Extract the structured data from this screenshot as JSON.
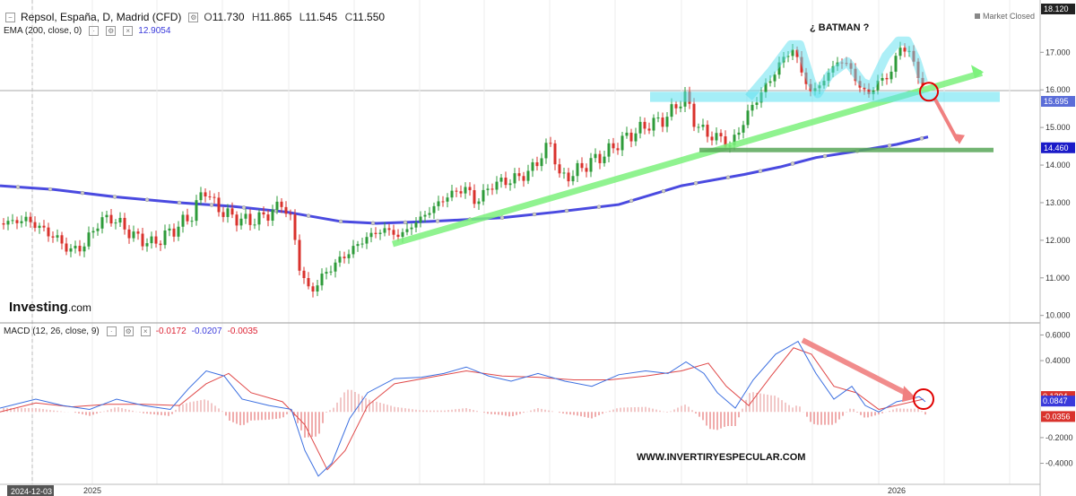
{
  "header": {
    "symbol": "Repsol, España, D, Madrid (CFD)",
    "o_label": "O",
    "o": "11.730",
    "h_label": "H",
    "h": "11.865",
    "l_label": "L",
    "l": "11.545",
    "c_label": "C",
    "c": "11.550",
    "ema_label": "EMA (200, close, 0)",
    "ema_value": "12.9054",
    "macd_label": "MACD (12, 26, close, 9)",
    "macd_v1": "-0.0172",
    "macd_v2": "-0.0207",
    "macd_v3": "-0.0035",
    "market_closed": "Market Closed"
  },
  "logo": {
    "brand": "Investing",
    "suffix": ".com"
  },
  "colors": {
    "up": "#2e9b3a",
    "down": "#d9322c",
    "ema": "#4a4ae0",
    "macd": "#3a6ee0",
    "signal": "#e04848",
    "cyan": "#5be0f0",
    "green": "#7df27d",
    "support": "#5aa85a",
    "red_arrow": "#f08080",
    "circle": "#e00000"
  },
  "chart_data": [
    {
      "type": "candlestick",
      "title": "Repsol, España, D, Madrid (CFD)",
      "annotations": [
        "¿ BATMAN ?",
        "WWW.INVERTIRYESPECULAR.COM"
      ],
      "x_tick_labels": [
        "2024-12-03",
        "2025",
        "2026"
      ],
      "ylim": [
        9.85,
        18.2
      ],
      "y_ticks": [
        10.0,
        11.0,
        12.0,
        13.0,
        14.0,
        15.0,
        16.0,
        17.0
      ],
      "y_tick_labels": [
        "10.000",
        "11.000",
        "12.000",
        "13.000",
        "14.000",
        "15.000",
        "16.000",
        "17.000"
      ],
      "price_labels": [
        {
          "value": 18.12,
          "text": "18.120",
          "color": "#222222"
        },
        {
          "value": 15.695,
          "text": "15.695",
          "color": "#5b6dd8"
        },
        {
          "value": 14.46,
          "text": "14.460",
          "color": "#1a1ac8"
        }
      ],
      "price_path": [
        [
          0,
          12.45
        ],
        [
          30,
          12.55
        ],
        [
          60,
          12.1
        ],
        [
          80,
          11.7
        ],
        [
          95,
          11.9
        ],
        [
          110,
          12.5
        ],
        [
          125,
          12.6
        ],
        [
          150,
          12.1
        ],
        [
          170,
          11.9
        ],
        [
          195,
          12.3
        ],
        [
          215,
          12.7
        ],
        [
          228,
          13.4
        ],
        [
          240,
          12.9
        ],
        [
          260,
          12.6
        ],
        [
          280,
          12.5
        ],
        [
          300,
          12.7
        ],
        [
          315,
          13.0
        ],
        [
          325,
          12.5
        ],
        [
          335,
          11.2
        ],
        [
          345,
          10.6
        ],
        [
          355,
          10.9
        ],
        [
          370,
          11.3
        ],
        [
          390,
          11.7
        ],
        [
          410,
          12.1
        ],
        [
          430,
          12.3
        ],
        [
          445,
          12.1
        ],
        [
          460,
          12.4
        ],
        [
          480,
          12.8
        ],
        [
          500,
          13.2
        ],
        [
          520,
          13.4
        ],
        [
          530,
          13.0
        ],
        [
          550,
          13.5
        ],
        [
          570,
          13.6
        ],
        [
          590,
          13.8
        ],
        [
          605,
          14.3
        ],
        [
          615,
          14.6
        ],
        [
          625,
          13.6
        ],
        [
          640,
          13.8
        ],
        [
          660,
          14.1
        ],
        [
          675,
          14.3
        ],
        [
          690,
          14.6
        ],
        [
          710,
          14.9
        ],
        [
          725,
          15.1
        ],
        [
          740,
          15.2
        ],
        [
          755,
          15.6
        ],
        [
          765,
          15.85
        ],
        [
          775,
          15.1
        ],
        [
          790,
          14.8
        ],
        [
          805,
          14.7
        ],
        [
          815,
          14.5
        ],
        [
          830,
          15.2
        ],
        [
          845,
          15.8
        ],
        [
          860,
          16.3
        ],
        [
          872,
          16.8
        ],
        [
          885,
          17.1
        ],
        [
          895,
          16.4
        ],
        [
          905,
          15.9
        ],
        [
          920,
          16.3
        ],
        [
          935,
          16.8
        ],
        [
          948,
          16.6
        ],
        [
          960,
          16.0
        ],
        [
          968,
          15.9
        ],
        [
          980,
          16.2
        ],
        [
          995,
          16.5
        ],
        [
          1005,
          17.25
        ],
        [
          1015,
          16.9
        ],
        [
          1025,
          16.4
        ],
        [
          1032,
          15.9
        ]
      ],
      "series": [
        {
          "name": "EMA (200, close, 0)",
          "points": [
            [
              0,
              13.45
            ],
            [
              60,
              13.35
            ],
            [
              130,
              13.15
            ],
            [
              200,
              13.0
            ],
            [
              260,
              12.9
            ],
            [
              320,
              12.75
            ],
            [
              380,
              12.5
            ],
            [
              420,
              12.45
            ],
            [
              480,
              12.5
            ],
            [
              560,
              12.6
            ],
            [
              620,
              12.75
            ],
            [
              690,
              12.95
            ],
            [
              760,
              13.45
            ],
            [
              830,
              13.75
            ],
            [
              870,
              13.95
            ],
            [
              910,
              14.2
            ],
            [
              950,
              14.35
            ],
            [
              1000,
              14.55
            ],
            [
              1035,
              14.75
            ]
          ]
        }
      ],
      "drawings": [
        {
          "kind": "trendline",
          "color": "green",
          "from": [
            438,
            11.9
          ],
          "to": [
            1095,
            16.45
          ]
        },
        {
          "kind": "trendline",
          "color": "green",
          "from": [
            780,
            14.4
          ],
          "to": [
            1108,
            14.4
          ]
        },
        {
          "kind": "band",
          "color": "cyan",
          "from": [
            725,
            15.95
          ],
          "to": [
            1115,
            15.68
          ]
        },
        {
          "kind": "batman-outline",
          "color": "cyan",
          "points": [
            [
              835,
              15.8
            ],
            [
              860,
              16.5
            ],
            [
              882,
              17.2
            ],
            [
              892,
              17.2
            ],
            [
              905,
              16.2
            ],
            [
              912,
              15.9
            ],
            [
              925,
              16.4
            ],
            [
              945,
              16.75
            ],
            [
              962,
              16.2
            ],
            [
              972,
              16.1
            ],
            [
              988,
              16.9
            ],
            [
              1002,
              17.3
            ],
            [
              1012,
              17.3
            ],
            [
              1022,
              16.8
            ],
            [
              1030,
              16.2
            ]
          ]
        },
        {
          "kind": "arrow",
          "color": "red",
          "from": [
            1043,
            15.75
          ],
          "to": [
            1068,
            14.65
          ]
        },
        {
          "kind": "circle",
          "color": "red",
          "center": [
            1036,
            15.95
          ]
        }
      ]
    },
    {
      "type": "macd",
      "title": "MACD (12, 26, close, 9)",
      "ylim": [
        -0.55,
        0.68
      ],
      "y_ticks": [
        0.6,
        0.4,
        -0.2,
        -0.4
      ],
      "y_tick_labels": [
        "0.6000",
        "0.4000",
        "-0.2000",
        "-0.4000"
      ],
      "price_labels": [
        {
          "value": 0.1204,
          "text": "0.1204",
          "color": "#d9322c"
        },
        {
          "value": 0.0847,
          "text": "0.0847",
          "color": "#3a3adb"
        },
        {
          "value": -0.0356,
          "text": "-0.0356",
          "color": "#d9322c"
        }
      ],
      "series": [
        {
          "name": "MACD",
          "points": [
            [
              0,
              0.03
            ],
            [
              40,
              0.1
            ],
            [
              70,
              0.05
            ],
            [
              100,
              0.02
            ],
            [
              130,
              0.1
            ],
            [
              160,
              0.05
            ],
            [
              190,
              0.02
            ],
            [
              210,
              0.18
            ],
            [
              230,
              0.32
            ],
            [
              250,
              0.28
            ],
            [
              270,
              0.1
            ],
            [
              300,
              0.05
            ],
            [
              325,
              0.02
            ],
            [
              340,
              -0.3
            ],
            [
              355,
              -0.5
            ],
            [
              370,
              -0.4
            ],
            [
              390,
              -0.05
            ],
            [
              410,
              0.15
            ],
            [
              440,
              0.26
            ],
            [
              470,
              0.27
            ],
            [
              495,
              0.3
            ],
            [
              520,
              0.35
            ],
            [
              545,
              0.28
            ],
            [
              570,
              0.24
            ],
            [
              600,
              0.3
            ],
            [
              630,
              0.24
            ],
            [
              660,
              0.2
            ],
            [
              690,
              0.29
            ],
            [
              720,
              0.32
            ],
            [
              745,
              0.3
            ],
            [
              765,
              0.39
            ],
            [
              785,
              0.3
            ],
            [
              800,
              0.15
            ],
            [
              820,
              0.03
            ],
            [
              840,
              0.25
            ],
            [
              865,
              0.45
            ],
            [
              890,
              0.55
            ],
            [
              910,
              0.3
            ],
            [
              930,
              0.1
            ],
            [
              950,
              0.2
            ],
            [
              965,
              0.05
            ],
            [
              980,
              0.0
            ],
            [
              1000,
              0.08
            ],
            [
              1015,
              0.1
            ],
            [
              1025,
              0.12
            ],
            [
              1032,
              0.08
            ]
          ]
        },
        {
          "name": "Signal",
          "points": [
            [
              0,
              0.0
            ],
            [
              40,
              0.07
            ],
            [
              80,
              0.04
            ],
            [
              120,
              0.06
            ],
            [
              160,
              0.06
            ],
            [
              200,
              0.05
            ],
            [
              230,
              0.22
            ],
            [
              255,
              0.3
            ],
            [
              280,
              0.15
            ],
            [
              315,
              0.08
            ],
            [
              340,
              -0.1
            ],
            [
              365,
              -0.45
            ],
            [
              385,
              -0.3
            ],
            [
              410,
              0.05
            ],
            [
              440,
              0.22
            ],
            [
              480,
              0.27
            ],
            [
              520,
              0.32
            ],
            [
              560,
              0.28
            ],
            [
              600,
              0.27
            ],
            [
              640,
              0.25
            ],
            [
              680,
              0.25
            ],
            [
              720,
              0.28
            ],
            [
              760,
              0.32
            ],
            [
              790,
              0.38
            ],
            [
              810,
              0.2
            ],
            [
              835,
              0.05
            ],
            [
              860,
              0.28
            ],
            [
              885,
              0.5
            ],
            [
              905,
              0.45
            ],
            [
              930,
              0.2
            ],
            [
              955,
              0.15
            ],
            [
              980,
              0.02
            ],
            [
              1005,
              0.06
            ],
            [
              1030,
              0.1
            ]
          ]
        }
      ]
    }
  ],
  "dates": {
    "start": "2024-12-03",
    "year1": "2025",
    "year2": "2026"
  }
}
